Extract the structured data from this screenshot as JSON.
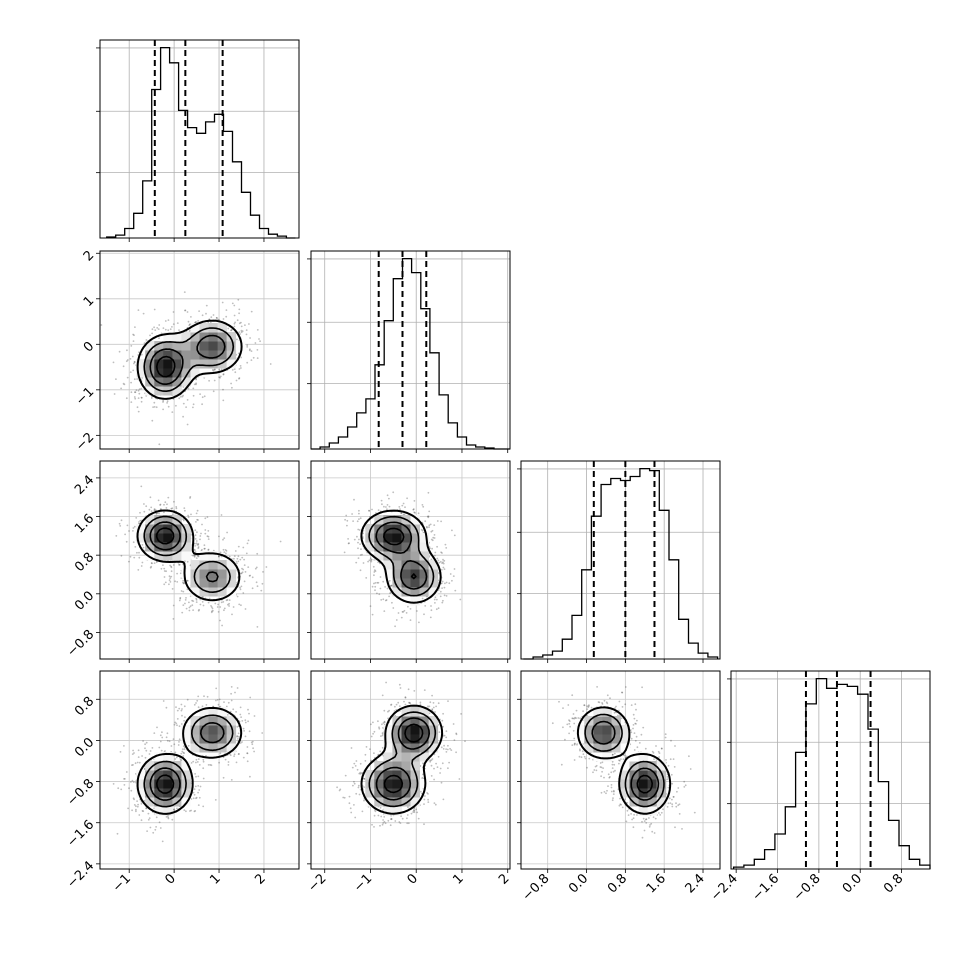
{
  "chart_data": {
    "type": "corner",
    "n_params": 4,
    "params": [
      {
        "range": [
          -1.65,
          2.78
        ],
        "quantiles": [
          -0.43,
          0.25,
          1.08
        ],
        "x_ticks": [
          -1,
          0,
          1,
          2
        ],
        "x_tick_labels": [
          "−1",
          "0",
          "1",
          "2"
        ],
        "y_ticks": [
          -2,
          -1,
          0,
          1,
          2
        ],
        "y_tick_labels": [
          "−2",
          "−1",
          "0",
          "1",
          "2"
        ],
        "hist": {
          "bins": [
            -1.5,
            -1.3,
            -1.1,
            -0.9,
            -0.7,
            -0.5,
            -0.3,
            -0.1,
            0.1,
            0.3,
            0.5,
            0.7,
            0.9,
            1.1,
            1.3,
            1.5,
            1.7,
            1.9,
            2.1,
            2.3,
            2.5,
            2.7
          ],
          "counts": [
            0.5,
            1.5,
            5,
            13,
            30,
            78,
            100,
            92,
            67,
            58,
            55,
            61,
            65,
            56,
            40,
            24,
            12,
            5,
            2,
            1,
            0
          ]
        }
      },
      {
        "range": [
          -2.3,
          2.05
        ],
        "quantiles": [
          -0.82,
          -0.3,
          0.22
        ],
        "x_ticks": [
          -2,
          -1,
          0,
          1,
          2
        ],
        "x_tick_labels": [
          "−2",
          "−1",
          "0",
          "1",
          "2"
        ],
        "y_ticks": [
          -2,
          -1,
          0,
          1,
          2
        ],
        "y_tick_labels": [
          "−2",
          "−1",
          "0",
          "1",
          "2"
        ],
        "hist": {
          "bins": [
            -2.3,
            -2.1,
            -1.9,
            -1.7,
            -1.5,
            -1.3,
            -1.1,
            -0.9,
            -0.7,
            -0.5,
            -0.3,
            -0.1,
            0.1,
            0.3,
            0.5,
            0.7,
            0.9,
            1.1,
            1.3,
            1.5,
            1.7,
            1.9,
            2.05
          ],
          "counts": [
            0,
            1,
            3,
            6,
            11,
            18,
            25,
            42,
            64,
            85,
            95,
            88,
            70,
            48,
            27,
            13,
            6,
            2,
            1,
            0.5,
            0,
            0
          ]
        }
      },
      {
        "range": [
          -1.35,
          2.75
        ],
        "quantiles": [
          0.15,
          0.8,
          1.4
        ],
        "x_ticks": [
          -0.8,
          0.0,
          0.8,
          1.6,
          2.4
        ],
        "x_tick_labels": [
          "−0.8",
          "0.0",
          "0.8",
          "1.6",
          "2.4"
        ],
        "y_ticks": [
          -0.8,
          0.0,
          0.8,
          1.6,
          2.4
        ],
        "y_tick_labels": [
          "−0.8",
          "0.0",
          "0.8",
          "1.6",
          "2.4"
        ],
        "hist": {
          "bins": [
            -1.3,
            -1.1,
            -0.9,
            -0.7,
            -0.5,
            -0.3,
            -0.1,
            0.1,
            0.3,
            0.5,
            0.7,
            0.9,
            1.1,
            1.3,
            1.5,
            1.7,
            1.9,
            2.1,
            2.3,
            2.5,
            2.7
          ],
          "counts": [
            0,
            1,
            2,
            4,
            10,
            22,
            45,
            72,
            88,
            91,
            90,
            92,
            96,
            95,
            75,
            50,
            20,
            8,
            3,
            1
          ]
        }
      },
      {
        "range": [
          -2.5,
          1.35
        ],
        "quantiles": [
          -1.05,
          -0.45,
          0.2
        ],
        "x_ticks": [
          -2.4,
          -1.6,
          -0.8,
          0.0,
          0.8
        ],
        "x_tick_labels": [
          "−2.4",
          "−1.6",
          "−0.8",
          "0.0",
          "0.8"
        ],
        "y_ticks": [
          -2.4,
          -1.6,
          -0.8,
          0.0,
          0.8
        ],
        "y_tick_labels": [
          "−2.4",
          "−1.6",
          "−0.8",
          "0.0",
          "0.8"
        ],
        "hist": {
          "bins": [
            -2.45,
            -2.25,
            -2.05,
            -1.85,
            -1.65,
            -1.45,
            -1.25,
            -1.05,
            -0.85,
            -0.65,
            -0.45,
            -0.25,
            -0.05,
            0.15,
            0.35,
            0.55,
            0.75,
            0.95,
            1.15,
            1.35
          ],
          "counts": [
            1,
            2,
            5,
            10,
            18,
            32,
            60,
            85,
            98,
            93,
            95,
            94,
            90,
            72,
            45,
            25,
            12,
            5,
            2
          ]
        }
      }
    ],
    "modes": [
      {
        "weight": 0.55,
        "mean": [
          -0.2,
          -0.5,
          1.2,
          -0.85
        ],
        "sd": [
          0.35,
          0.4,
          0.3,
          0.33
        ]
      },
      {
        "weight": 0.45,
        "mean": [
          0.85,
          -0.05,
          0.35,
          0.15
        ],
        "sd": [
          0.4,
          0.35,
          0.32,
          0.3
        ]
      }
    ]
  }
}
